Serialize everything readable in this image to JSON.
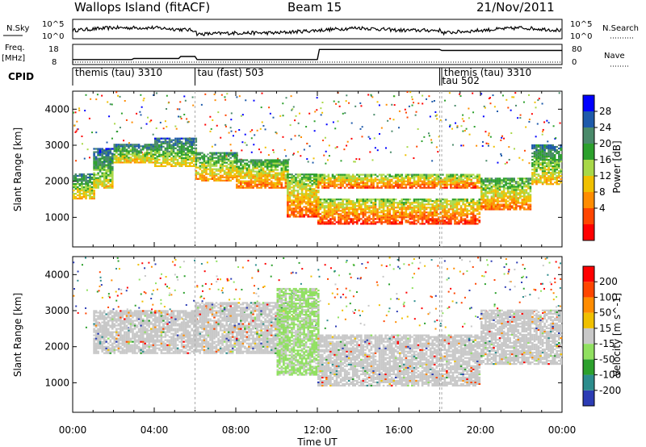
{
  "header": {
    "station": "Wallops Island (fitACF)",
    "beam": "Beam 15",
    "date": "21/Nov/2011"
  },
  "strip_labels": {
    "nsky": "N.Sky",
    "nsearch": "N.Search",
    "freq": "Freq.",
    "freq_unit": "[MHz]",
    "nave": "Nave",
    "cpid": "CPID",
    "nsky_ticks": [
      "10^5",
      "10^0"
    ],
    "nsearch_ticks": [
      "10^5",
      "10^0"
    ],
    "freq_ticks": [
      "18",
      "8"
    ],
    "nave_ticks": [
      "80",
      "0"
    ]
  },
  "cpid_segments": [
    {
      "label": "themis (tau) 3310",
      "start": 0.0
    },
    {
      "label": "tau (fast) 503",
      "start": 6.0
    },
    {
      "label": "tau 502",
      "start": 18.0
    },
    {
      "label": "themis (tau) 3310",
      "start": 18.1
    }
  ],
  "x_axis": {
    "label": "Time UT",
    "ticks": [
      "00:00",
      "04:00",
      "08:00",
      "12:00",
      "16:00",
      "20:00",
      "00:00"
    ],
    "range_hours": [
      0,
      24
    ]
  },
  "y_axis": {
    "label": "Slant Range [km]",
    "ticks": [
      1000,
      2000,
      3000,
      4000
    ],
    "range_km": [
      180,
      4500
    ]
  },
  "power_colorbar": {
    "label": "Power [dB]",
    "ticks": [
      "28",
      "24",
      "20",
      "16",
      "12",
      "8",
      "4"
    ],
    "colors": [
      "#0000ff",
      "#1e5aaa",
      "#4a8a6a",
      "#2ca02c",
      "#a8d848",
      "#f0c000",
      "#ff8c00",
      "#ff4500",
      "#ff0000"
    ]
  },
  "velocity_colorbar": {
    "label": "Velocity [m s^-1]",
    "ticks": [
      "200",
      "100",
      "50",
      "15",
      "-15",
      "-50",
      "-100",
      "-200"
    ],
    "colors": [
      "#2c3cb4",
      "#2c8c8c",
      "#2ca02c",
      "#90e060",
      "#c8c8c8",
      "#f0c000",
      "#ff8c00",
      "#ff4500",
      "#ff0000"
    ]
  },
  "chart_data": [
    {
      "type": "line",
      "title": "N.Sky / N.Search",
      "x": [
        0,
        2,
        4,
        6,
        6.1,
        8,
        10,
        12,
        14,
        16,
        18,
        18.2,
        20,
        22,
        24
      ],
      "series": [
        {
          "name": "N.Sky",
          "values": [
            2,
            3,
            3,
            2,
            0.5,
            1,
            1,
            2,
            3,
            2,
            2,
            1,
            2,
            3,
            2
          ]
        }
      ]
    },
    {
      "type": "line",
      "title": "Freq. / Nave",
      "x": [
        0,
        2.9,
        3,
        5.2,
        5.3,
        6.0,
        6.1,
        12.0,
        12.1,
        18.0,
        18.1,
        24
      ],
      "series": [
        {
          "name": "Freq. [MHz]",
          "values": [
            10.5,
            10.5,
            11,
            11,
            12,
            12,
            10.5,
            10.5,
            15.5,
            15.5,
            15,
            15
          ]
        }
      ]
    },
    {
      "type": "heatmap",
      "title": "Power [dB]",
      "xlabel": "Time UT",
      "ylabel": "Slant Range [km]",
      "x_range": [
        0,
        24
      ],
      "y_range": [
        180,
        4500
      ],
      "bands": [
        {
          "start": 0.0,
          "end": 1.0,
          "low": 1500,
          "high": 2200,
          "power": 22
        },
        {
          "start": 1.0,
          "end": 2.0,
          "low": 1800,
          "high": 2900,
          "power": 20
        },
        {
          "start": 2.0,
          "end": 4.0,
          "low": 2500,
          "high": 3000,
          "power": 22
        },
        {
          "start": 4.0,
          "end": 6.0,
          "low": 2400,
          "high": 3200,
          "power": 20
        },
        {
          "start": 6.0,
          "end": 8.0,
          "low": 2000,
          "high": 2800,
          "power": 24
        },
        {
          "start": 8.0,
          "end": 10.5,
          "low": 1800,
          "high": 2600,
          "power": 26
        },
        {
          "start": 10.5,
          "end": 12.0,
          "low": 1000,
          "high": 2200,
          "power": 28
        },
        {
          "start": 12.0,
          "end": 20.0,
          "low": 800,
          "high": 1500,
          "power": 30
        },
        {
          "start": 12.0,
          "end": 20.0,
          "low": 1800,
          "high": 2200,
          "power": 28
        },
        {
          "start": 20.0,
          "end": 22.5,
          "low": 1200,
          "high": 2100,
          "power": 26
        },
        {
          "start": 22.5,
          "end": 24.0,
          "low": 1900,
          "high": 3000,
          "power": 22
        }
      ]
    },
    {
      "type": "heatmap",
      "title": "Velocity [m s^-1]",
      "xlabel": "Time UT",
      "ylabel": "Slant Range [km]",
      "x_range": [
        0,
        24
      ],
      "y_range": [
        180,
        4500
      ],
      "bands": [
        {
          "start": 1.0,
          "end": 6.0,
          "low": 1800,
          "high": 3000,
          "velocity": 0
        },
        {
          "start": 6.0,
          "end": 10.5,
          "low": 1800,
          "high": 3200,
          "velocity": 0
        },
        {
          "start": 10.0,
          "end": 12.0,
          "low": 1200,
          "high": 3600,
          "velocity": 30
        },
        {
          "start": 12.0,
          "end": 20.0,
          "low": 900,
          "high": 2300,
          "velocity": 0
        },
        {
          "start": 20.0,
          "end": 24.0,
          "low": 1500,
          "high": 3000,
          "velocity": 0
        }
      ]
    }
  ]
}
